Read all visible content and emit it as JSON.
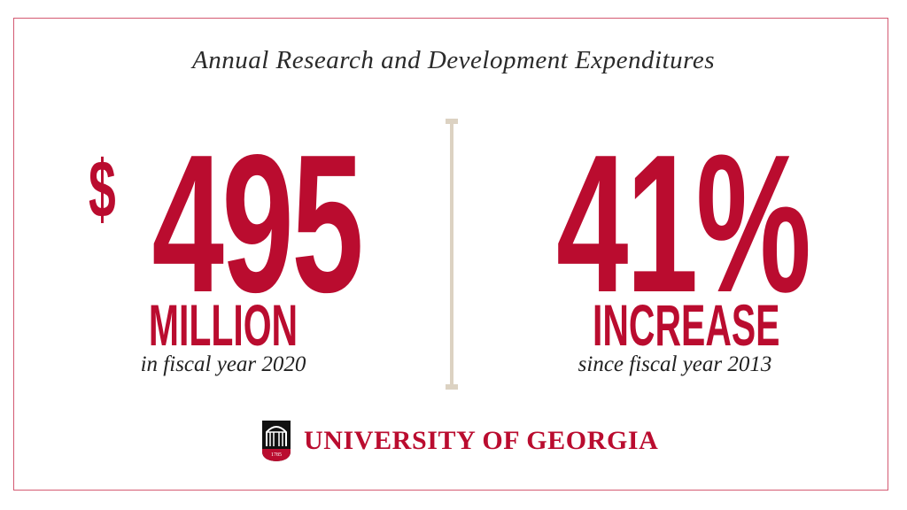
{
  "title": "Annual Research and Development Expenditures",
  "left_stat": {
    "currency": "$",
    "value": "495",
    "unit": "MILLION",
    "caption": "in fiscal year 2020"
  },
  "right_stat": {
    "value": "41%",
    "unit": "INCREASE",
    "caption": "since fiscal year 2013"
  },
  "logo": {
    "name": "UNIVERSITY OF GEORGIA",
    "year": "1785"
  },
  "colors": {
    "accent": "#ba0c2f",
    "divider": "#dcd2c2",
    "border": "#d45a72"
  }
}
